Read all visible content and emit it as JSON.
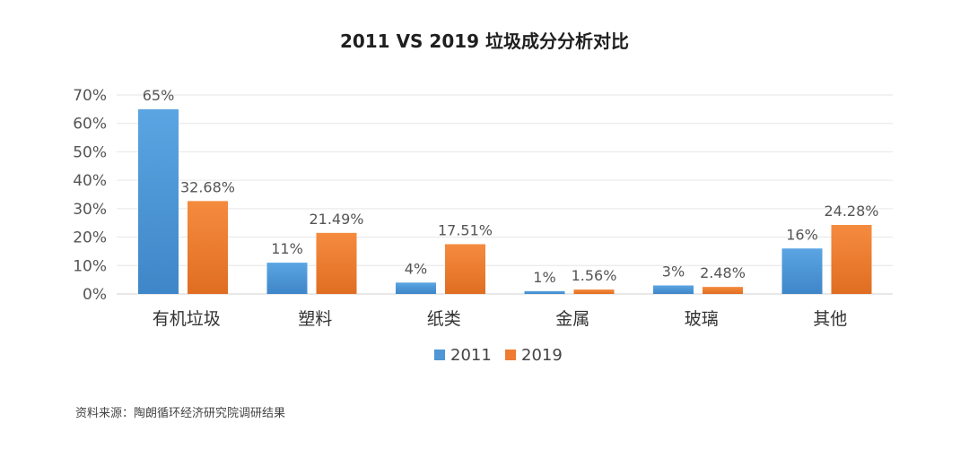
{
  "chart_data": {
    "type": "bar",
    "title": "2011 VS 2019 垃圾成分分析对比",
    "xlabel": "",
    "ylabel": "",
    "categories": [
      "有机垃圾",
      "塑料",
      "纸类",
      "金属",
      "玻璃",
      "其他"
    ],
    "series": [
      {
        "name": "2011",
        "color": "#4e96d6",
        "values": [
          65,
          11,
          4,
          1,
          3,
          16
        ],
        "labels": [
          "65%",
          "11%",
          "4%",
          "1%",
          "3%",
          "16%"
        ]
      },
      {
        "name": "2019",
        "color": "#ee7d31",
        "values": [
          32.68,
          21.49,
          17.51,
          1.56,
          2.48,
          24.28
        ],
        "labels": [
          "32.68%",
          "21.49%",
          "17.51%",
          "1.56%",
          "2.48%",
          "24.28%"
        ]
      }
    ],
    "ylim": [
      0,
      70
    ],
    "yticks": [
      0,
      10,
      20,
      30,
      40,
      50,
      60,
      70
    ],
    "ytick_labels": [
      "0%",
      "10%",
      "20%",
      "30%",
      "40%",
      "50%",
      "60%",
      "70%"
    ],
    "grid": true,
    "legend_position": "bottom-center"
  },
  "source_note": "资料来源：陶朗循环经济研究院调研结果"
}
